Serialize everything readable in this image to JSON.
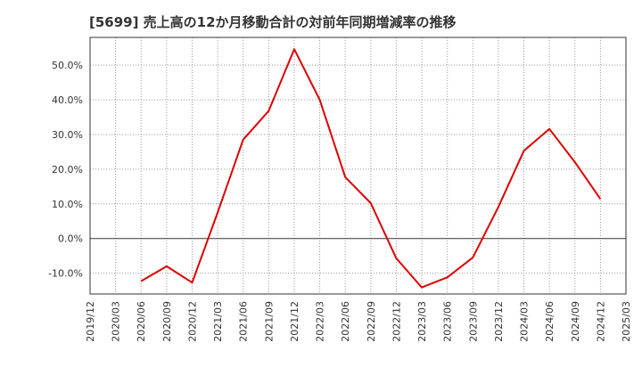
{
  "chart_data": {
    "type": "line",
    "title": "[5699]  売上高の12か月移動合計の対前年同期増減率の推移",
    "xlabel": "",
    "ylabel": "",
    "grid": true,
    "x_ticks": [
      "2019/12",
      "2020/03",
      "2020/06",
      "2020/09",
      "2020/12",
      "2021/03",
      "2021/06",
      "2021/09",
      "2021/12",
      "2022/03",
      "2022/06",
      "2022/09",
      "2022/12",
      "2023/03",
      "2023/06",
      "2023/09",
      "2023/12",
      "2024/03",
      "2024/06",
      "2024/09",
      "2024/12",
      "2025/03"
    ],
    "y_ticks": [
      -10,
      0,
      10,
      20,
      30,
      40,
      50
    ],
    "y_tick_labels": [
      "-10.0%",
      "0.0%",
      "10.0%",
      "20.0%",
      "30.0%",
      "40.0%",
      "50.0%"
    ],
    "ylim": [
      -16,
      58
    ],
    "series": [
      {
        "name": "対前年同期増減率",
        "color": "#dd0000",
        "x": [
          "2020/06",
          "2020/09",
          "2020/12",
          "2021/03",
          "2021/06",
          "2021/09",
          "2021/12",
          "2022/03",
          "2022/06",
          "2022/09",
          "2022/12",
          "2023/03",
          "2023/06",
          "2023/09",
          "2023/12",
          "2024/03",
          "2024/06",
          "2024/09",
          "2024/12"
        ],
        "values": [
          -12.3,
          -8.0,
          -12.7,
          7.5,
          28.5,
          36.8,
          54.6,
          40.0,
          17.7,
          10.2,
          -5.7,
          -14.1,
          -11.2,
          -5.5,
          9.1,
          25.3,
          31.6,
          22.0,
          11.4
        ]
      }
    ]
  }
}
